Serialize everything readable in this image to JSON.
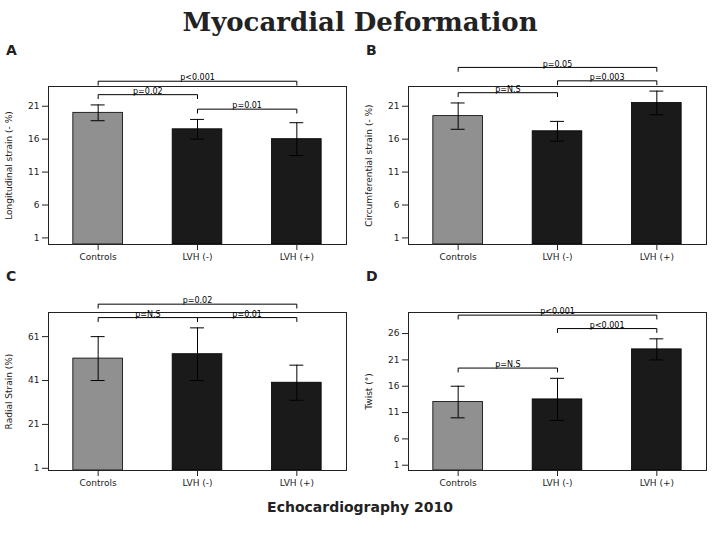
{
  "title": "Myocardial Deformation",
  "subtitle": "Echocardiography 2010",
  "chart_data": [
    {
      "type": "bar",
      "title": "A",
      "ylabel": "Longitudinal strain (- %)",
      "categories": [
        "Controls",
        "LVH (-)",
        "LVH (+)"
      ],
      "values": [
        20,
        17.5,
        16
      ],
      "errors": [
        1.2,
        1.5,
        2.5
      ],
      "colors": [
        "#909090",
        "#1a1a1a",
        "#1a1a1a"
      ],
      "ylim": [
        0,
        24
      ],
      "yticks": [
        1,
        6,
        11,
        16,
        21
      ],
      "annotations": [
        {
          "text": "p=0.02",
          "between": [
            "Controls",
            "LVH (-)"
          ]
        },
        {
          "text": "p=0.01",
          "between": [
            "LVH (-)",
            "LVH (+)"
          ]
        },
        {
          "text": "p<0.001",
          "between": [
            "Controls",
            "LVH (+)"
          ]
        }
      ]
    },
    {
      "type": "bar",
      "title": "B",
      "ylabel": "Circumferential strain (- %)",
      "categories": [
        "Controls",
        "LVH (-)",
        "LVH (+)"
      ],
      "values": [
        19.5,
        17.2,
        21.5
      ],
      "errors": [
        2.0,
        1.5,
        1.8
      ],
      "colors": [
        "#909090",
        "#1a1a1a",
        "#1a1a1a"
      ],
      "ylim": [
        0,
        24
      ],
      "yticks": [
        1,
        6,
        11,
        16,
        21
      ],
      "annotations": [
        {
          "text": "p=N.S",
          "between": [
            "Controls",
            "LVH (-)"
          ]
        },
        {
          "text": "p=0.003",
          "between": [
            "LVH (-)",
            "LVH (+)"
          ]
        },
        {
          "text": "p=0.05",
          "between": [
            "Controls",
            "LVH (+)"
          ]
        }
      ]
    },
    {
      "type": "bar",
      "title": "C",
      "ylabel": "Radial Strain (%)",
      "categories": [
        "Controls",
        "LVH (-)",
        "LVH (+)"
      ],
      "values": [
        51,
        53,
        40
      ],
      "errors": [
        10,
        12,
        8
      ],
      "colors": [
        "#909090",
        "#1a1a1a",
        "#1a1a1a"
      ],
      "ylim": [
        0,
        72
      ],
      "yticks": [
        1,
        21,
        41,
        61
      ],
      "annotations": [
        {
          "text": "p=N.S",
          "between": [
            "Controls",
            "LVH (-)"
          ]
        },
        {
          "text": "p=0.01",
          "between": [
            "LVH (-)",
            "LVH (+)"
          ]
        },
        {
          "text": "p=0.02",
          "between": [
            "Controls",
            "LVH (+)"
          ]
        }
      ]
    },
    {
      "type": "bar",
      "title": "D",
      "ylabel": "Twist (°)",
      "categories": [
        "Controls",
        "LVH (-)",
        "LVH (+)"
      ],
      "values": [
        13,
        13.5,
        23
      ],
      "errors": [
        3,
        4,
        2
      ],
      "colors": [
        "#909090",
        "#1a1a1a",
        "#1a1a1a"
      ],
      "ylim": [
        0,
        30
      ],
      "yticks": [
        1,
        6,
        11,
        16,
        21,
        26
      ],
      "annotations": [
        {
          "text": "p=N.S",
          "between": [
            "Controls",
            "LVH (-)"
          ]
        },
        {
          "text": "p<0.001",
          "between": [
            "LVH (-)",
            "LVH (+)"
          ]
        },
        {
          "text": "p<0.001",
          "between": [
            "Controls",
            "LVH (+)"
          ]
        }
      ]
    }
  ]
}
